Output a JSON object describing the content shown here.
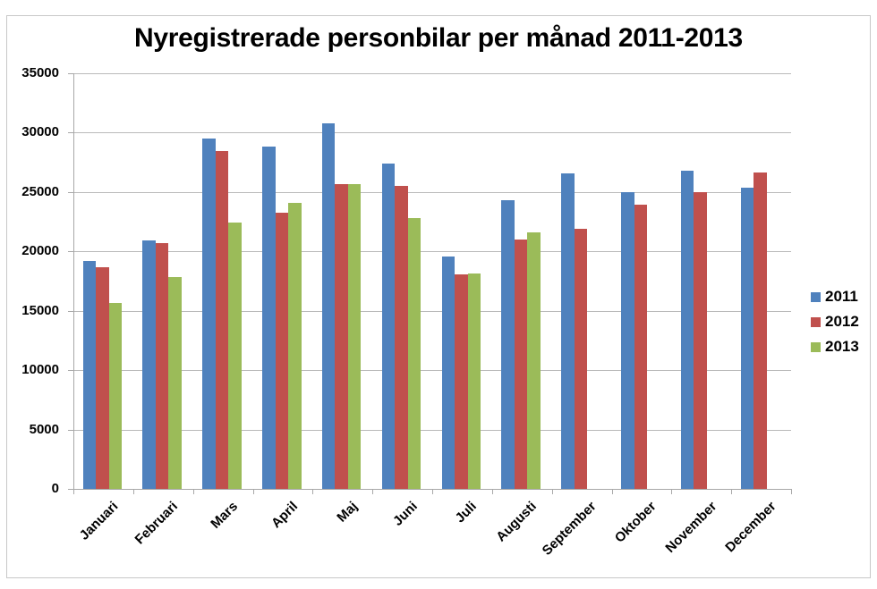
{
  "chart_data": {
    "type": "bar",
    "title": "Nyregistrerade personbilar per månad 2011-2013",
    "xlabel": "",
    "ylabel": "",
    "ylim": [
      0,
      35000
    ],
    "yticks": [
      "0",
      "5000",
      "10000",
      "15000",
      "20000",
      "25000",
      "30000",
      "35000"
    ],
    "grid": true,
    "legend_position": "right",
    "categories": [
      "Januari",
      "Februari",
      "Mars",
      "April",
      "Maj",
      "Juni",
      "Juli",
      "Augusti",
      "September",
      "Oktober",
      "November",
      "December"
    ],
    "series": [
      {
        "name": "2011",
        "color": "#4f81bd",
        "values": [
          19200,
          20950,
          29470,
          28860,
          30800,
          27420,
          19570,
          24310,
          26540,
          25000,
          26820,
          25340
        ]
      },
      {
        "name": "2012",
        "color": "#c0504d",
        "values": [
          18650,
          20700,
          28470,
          23280,
          25650,
          25500,
          18050,
          21030,
          21900,
          23970,
          25000,
          26670
        ]
      },
      {
        "name": "2013",
        "color": "#9bbb59",
        "values": [
          15660,
          17820,
          22460,
          24110,
          25700,
          22830,
          18120,
          21580,
          null,
          null,
          null,
          null
        ]
      }
    ]
  },
  "legend": {
    "items": [
      {
        "label": "2011",
        "color": "#4f81bd"
      },
      {
        "label": "2012",
        "color": "#c0504d"
      },
      {
        "label": "2013",
        "color": "#9bbb59"
      }
    ]
  }
}
